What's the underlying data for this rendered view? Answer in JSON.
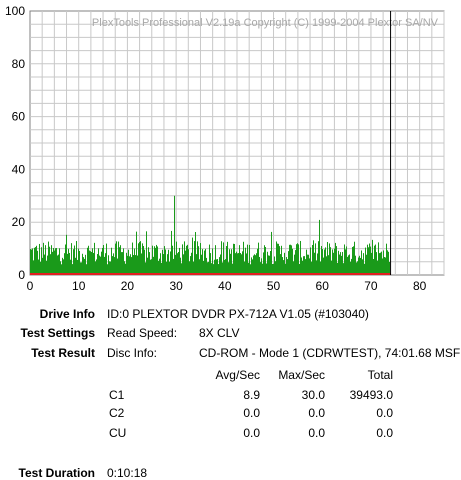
{
  "watermark": "PlexTools Professional V2.19a Copyright (C) 1999-2004 Plextor SA/NV",
  "drive_info": {
    "label": "Drive Info",
    "value": "ID:0 PLEXTOR DVDR PX-712A V1.05 (#103040)"
  },
  "test_settings": {
    "label": "Test Settings",
    "key": "Read Speed:",
    "value": "8X CLV"
  },
  "test_result": {
    "label": "Test Result",
    "key": "Disc Info:",
    "value": "CD-ROM - Mode 1 (CDRWTEST), 74:01.68 MSF"
  },
  "table": {
    "headers": [
      "Avg/Sec",
      "Max/Sec",
      "Total"
    ],
    "rows": [
      {
        "name": "C1",
        "avg": "8.9",
        "max": "30.0",
        "total": "39493.0"
      },
      {
        "name": "C2",
        "avg": "0.0",
        "max": "0.0",
        "total": "0.0"
      },
      {
        "name": "CU",
        "avg": "0.0",
        "max": "0.0",
        "total": "0.0"
      }
    ]
  },
  "test_duration": {
    "label": "Test Duration",
    "value": "0:10:18"
  },
  "colors": {
    "c1": "#1a9a1a",
    "c2": "#e02020",
    "marker": "#000000",
    "grid": "#c8c8c8"
  },
  "chart_data": {
    "type": "bar",
    "xlim": [
      0,
      85
    ],
    "ylim": [
      0,
      100
    ],
    "x_ticks": [
      "0",
      "10",
      "20",
      "30",
      "40",
      "50",
      "60",
      "70",
      "80"
    ],
    "y_ticks": [
      "0",
      "20",
      "40",
      "60",
      "80",
      "100"
    ],
    "end_marker_x": 74.03,
    "series": [
      {
        "name": "C1",
        "x_end": 74.03,
        "average": 8.9,
        "max": 30.0
      },
      {
        "name": "C2",
        "x_end": 74.03,
        "average": 0.0,
        "max": 0.0
      }
    ],
    "grid": true
  }
}
